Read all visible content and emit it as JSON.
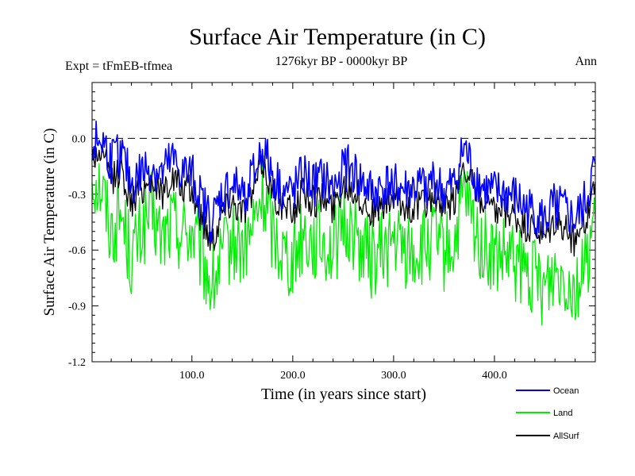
{
  "chart_data": {
    "type": "line",
    "title": "Surface Air Temperature (in C)",
    "subtitle_left": "Expt = tFmEB-tfmea",
    "subtitle_center": "1276kyr BP - 0000kyr BP",
    "subtitle_right": "Ann",
    "xlabel": "Time (in years since start)",
    "ylabel": "Surface Air Temperature (in C)",
    "xlim": [
      1,
      500
    ],
    "ylim": [
      -1.2,
      0.3
    ],
    "xticks": [
      100,
      200,
      300,
      400
    ],
    "xtick_labels": [
      "100.0",
      "200.0",
      "300.0",
      "400.0"
    ],
    "yticks": [
      0.0,
      -0.3,
      -0.6,
      -0.9,
      -1.2
    ],
    "ytick_labels": [
      "0.0",
      "-0.3",
      "-0.6",
      "-0.9",
      "-1.2"
    ],
    "reference_line": {
      "y": 0.0,
      "style": "dashed"
    },
    "legend": {
      "placement": "bottom-right"
    },
    "series": [
      {
        "name": "Ocean",
        "color": "#0000ff",
        "x": [
          1,
          10,
          20,
          30,
          40,
          50,
          60,
          70,
          80,
          90,
          100,
          110,
          120,
          130,
          140,
          150,
          160,
          170,
          180,
          190,
          200,
          210,
          220,
          230,
          240,
          250,
          260,
          270,
          280,
          290,
          300,
          310,
          320,
          330,
          340,
          350,
          360,
          370,
          380,
          390,
          400,
          410,
          420,
          430,
          440,
          450,
          460,
          470,
          480,
          490,
          500
        ],
        "values": [
          -0.05,
          0.0,
          -0.12,
          -0.08,
          -0.25,
          -0.18,
          -0.15,
          -0.2,
          -0.12,
          -0.18,
          -0.2,
          -0.35,
          -0.45,
          -0.3,
          -0.25,
          -0.3,
          -0.22,
          -0.05,
          -0.2,
          -0.28,
          -0.3,
          -0.2,
          -0.25,
          -0.22,
          -0.28,
          -0.15,
          -0.18,
          -0.25,
          -0.3,
          -0.26,
          -0.24,
          -0.28,
          -0.27,
          -0.26,
          -0.22,
          -0.3,
          -0.25,
          -0.05,
          -0.2,
          -0.28,
          -0.3,
          -0.3,
          -0.32,
          -0.38,
          -0.4,
          -0.45,
          -0.35,
          -0.4,
          -0.45,
          -0.35,
          -0.15
        ]
      },
      {
        "name": "Land",
        "color": "#00ee00",
        "x": [
          1,
          10,
          20,
          30,
          40,
          50,
          60,
          70,
          80,
          90,
          100,
          110,
          120,
          130,
          140,
          150,
          160,
          170,
          180,
          190,
          200,
          210,
          220,
          230,
          240,
          250,
          260,
          270,
          280,
          290,
          300,
          310,
          320,
          330,
          340,
          350,
          360,
          370,
          380,
          390,
          400,
          410,
          420,
          430,
          440,
          450,
          460,
          470,
          480,
          490,
          500
        ],
        "values": [
          -0.2,
          -0.25,
          -0.5,
          -0.4,
          -0.65,
          -0.5,
          -0.4,
          -0.55,
          -0.45,
          -0.5,
          -0.5,
          -0.65,
          -0.8,
          -0.65,
          -0.55,
          -0.6,
          -0.5,
          -0.3,
          -0.5,
          -0.6,
          -0.65,
          -0.5,
          -0.55,
          -0.55,
          -0.6,
          -0.45,
          -0.5,
          -0.6,
          -0.65,
          -0.6,
          -0.55,
          -0.6,
          -0.62,
          -0.6,
          -0.55,
          -0.62,
          -0.58,
          -0.3,
          -0.5,
          -0.6,
          -0.65,
          -0.65,
          -0.68,
          -0.72,
          -0.75,
          -0.8,
          -0.7,
          -0.72,
          -0.8,
          -0.7,
          -0.4
        ]
      },
      {
        "name": "AllSurf",
        "color": "#000000",
        "x": [
          1,
          10,
          20,
          30,
          40,
          50,
          60,
          70,
          80,
          90,
          100,
          110,
          120,
          130,
          140,
          150,
          160,
          170,
          180,
          190,
          200,
          210,
          220,
          230,
          240,
          250,
          260,
          270,
          280,
          290,
          300,
          310,
          320,
          330,
          340,
          350,
          360,
          370,
          380,
          390,
          400,
          410,
          420,
          430,
          440,
          450,
          460,
          470,
          480,
          490,
          500
        ],
        "values": [
          -0.1,
          -0.08,
          -0.22,
          -0.17,
          -0.35,
          -0.27,
          -0.22,
          -0.3,
          -0.21,
          -0.27,
          -0.29,
          -0.44,
          -0.55,
          -0.39,
          -0.33,
          -0.39,
          -0.3,
          -0.12,
          -0.29,
          -0.37,
          -0.4,
          -0.28,
          -0.34,
          -0.32,
          -0.38,
          -0.24,
          -0.27,
          -0.35,
          -0.4,
          -0.36,
          -0.33,
          -0.37,
          -0.37,
          -0.35,
          -0.31,
          -0.39,
          -0.34,
          -0.12,
          -0.29,
          -0.37,
          -0.41,
          -0.4,
          -0.43,
          -0.48,
          -0.5,
          -0.55,
          -0.45,
          -0.49,
          -0.55,
          -0.45,
          -0.23
        ]
      }
    ]
  }
}
